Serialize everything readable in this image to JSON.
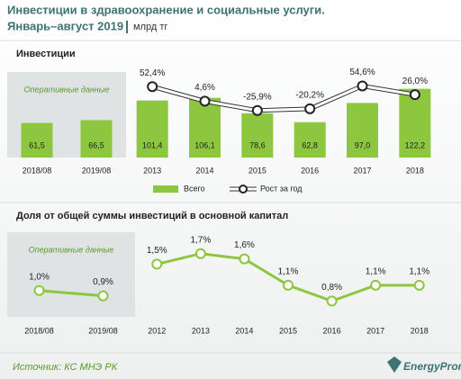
{
  "header": {
    "title": "Инвестиции в здравоохранение и социальные услуги.",
    "subtitle": "Январь–август 2019",
    "unit": "млрд тг"
  },
  "chart_data": [
    {
      "type": "bar",
      "title": "Инвестиции",
      "categories": [
        "2018/08",
        "2019/08",
        "2013",
        "2014",
        "2015",
        "2016",
        "2017",
        "2018"
      ],
      "highlight": {
        "label": "Оперативные данные",
        "span": 2
      },
      "ylim": [
        0,
        160
      ],
      "y2lim": [
        -180,
        115
      ],
      "series": [
        {
          "name": "Всего",
          "color": "#8dc63f",
          "values": [
            61.5,
            66.5,
            101.4,
            106.1,
            78.6,
            62.8,
            97.0,
            122.2
          ],
          "value_labels": [
            "61,5",
            "66,5",
            "101,4",
            "106,1",
            "78,6",
            "62,8",
            "97,0",
            "122,2"
          ]
        },
        {
          "name": "Рост за год",
          "color": "#ffffff",
          "axis": "y2",
          "values": [
            null,
            null,
            52.4,
            4.6,
            -25.9,
            -20.2,
            54.6,
            26.0
          ],
          "value_labels": [
            null,
            null,
            "52,4%",
            "4,6%",
            "-25,9%",
            "-20,2%",
            "54,6%",
            "26,0%"
          ]
        }
      ]
    },
    {
      "type": "line",
      "title": "Доля от общей суммы  инвестиций  в основной капитал",
      "categories": [
        "2018/08",
        "2019/08",
        "2012",
        "2013",
        "2014",
        "2015",
        "2016",
        "2017",
        "2018"
      ],
      "highlight": {
        "label": "Оперативные данные",
        "span": 2
      },
      "ylim": [
        0.5,
        1.9
      ],
      "series": [
        {
          "color": "#8dc63f",
          "values": [
            1.0,
            0.9,
            1.5,
            1.7,
            1.6,
            1.1,
            0.8,
            1.1,
            1.1
          ],
          "value_labels": [
            "1,0%",
            "0,9%",
            "1,5%",
            "1,7%",
            "1,6%",
            "1,1%",
            "0,8%",
            "1,1%",
            "1,1%"
          ]
        }
      ]
    }
  ],
  "footer": {
    "source": "Источник: КС МНЭ РК",
    "logo": "EnergyProm"
  }
}
